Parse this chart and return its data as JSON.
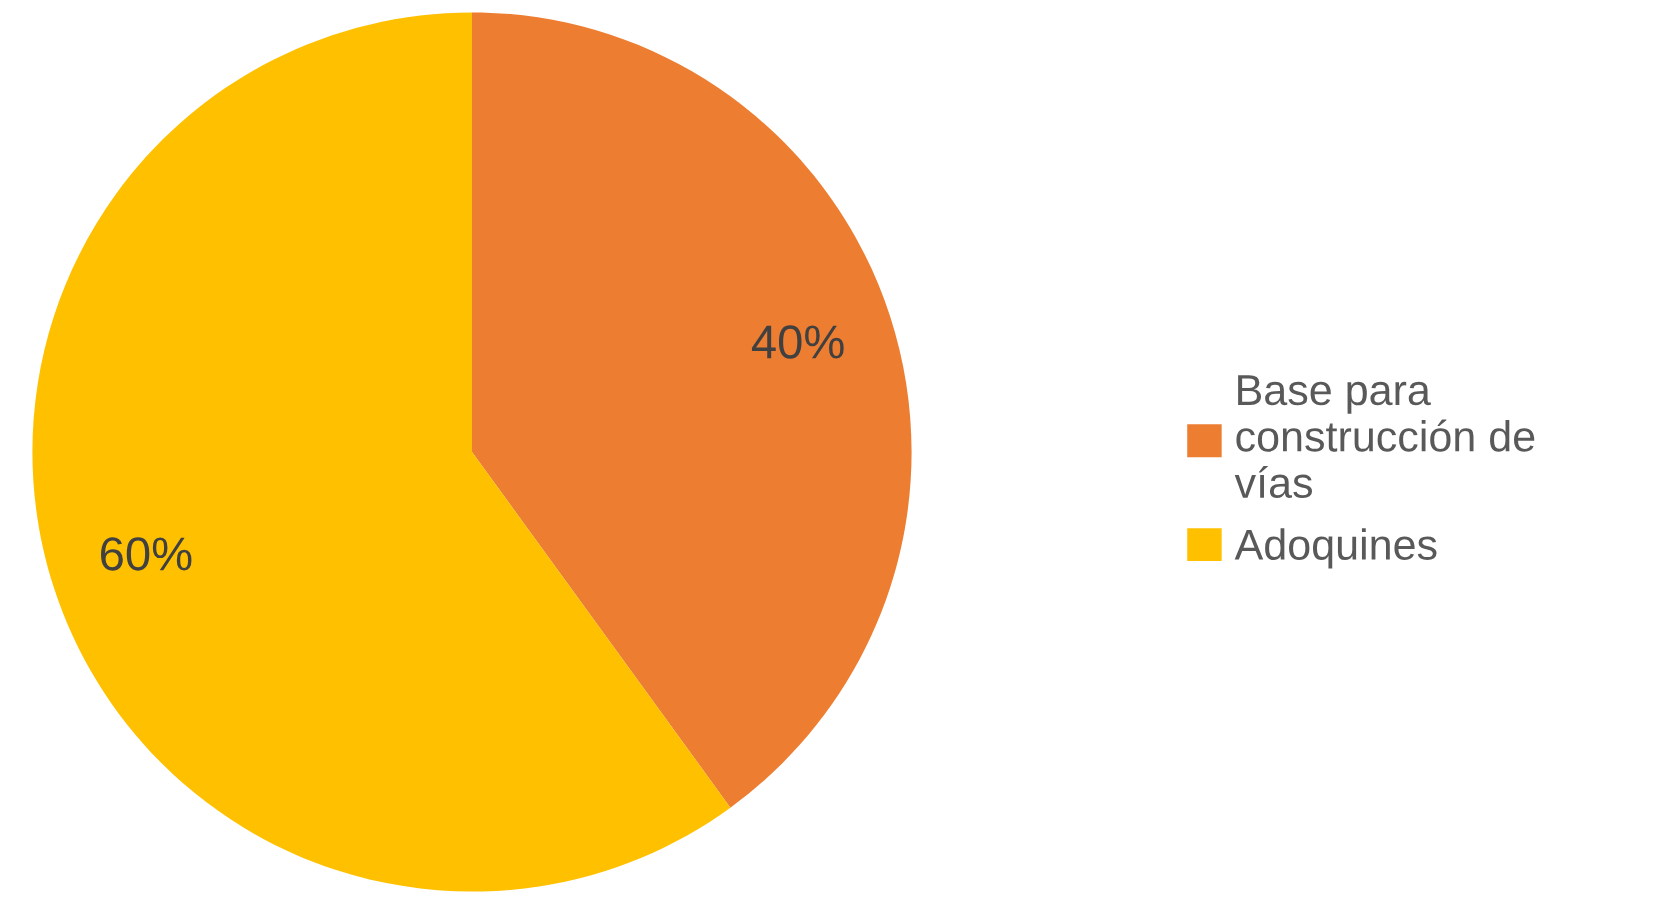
{
  "chart_data": {
    "type": "pie",
    "categories": [
      "Base para construcción de vías",
      "Adoquines"
    ],
    "values": [
      40,
      60
    ],
    "colors": [
      "#ed7d31",
      "#ffc000"
    ],
    "value_labels": [
      "40%",
      "60%"
    ],
    "legend": "right"
  }
}
